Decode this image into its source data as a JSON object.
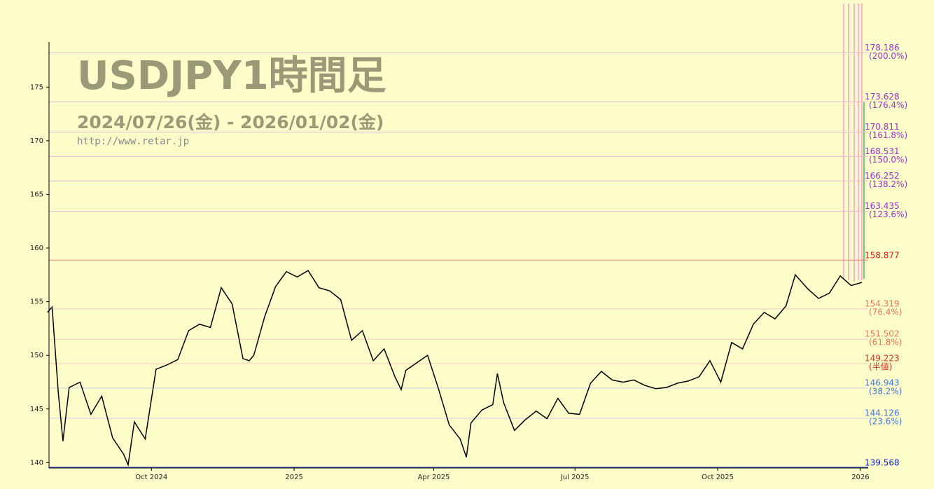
{
  "chart_data": {
    "type": "line",
    "title": "USDJPY1時間足",
    "subtitle": "2024/07/26(金) - 2026/01/02(金)",
    "source": "http://www.retar.jp",
    "xlim": [
      "2024-07-27",
      "2026-01-06"
    ],
    "ylim": [
      139.5,
      179.2
    ],
    "yticks": [
      140,
      145,
      150,
      155,
      160,
      165,
      170,
      175
    ],
    "xticks": [
      {
        "value": "2024-10-01",
        "label": "Oct 2024"
      },
      {
        "value": "2025-01-01",
        "label": "2025"
      },
      {
        "value": "2025-04-01",
        "label": "Apr 2025"
      },
      {
        "value": "2025-07-01",
        "label": "Jul 2025"
      },
      {
        "value": "2025-10-01",
        "label": "Oct 2025"
      },
      {
        "value": "2026-01-01",
        "label": "2026"
      }
    ],
    "x": [
      "2024-07-26",
      "2024-07-29",
      "2024-08-02",
      "2024-08-05",
      "2024-08-09",
      "2024-08-16",
      "2024-08-23",
      "2024-08-30",
      "2024-09-06",
      "2024-09-13",
      "2024-09-16",
      "2024-09-20",
      "2024-09-27",
      "2024-10-04",
      "2024-10-11",
      "2024-10-18",
      "2024-10-25",
      "2024-11-01",
      "2024-11-08",
      "2024-11-15",
      "2024-11-22",
      "2024-11-29",
      "2024-12-03",
      "2024-12-06",
      "2024-12-13",
      "2024-12-20",
      "2024-12-27",
      "2025-01-03",
      "2025-01-10",
      "2025-01-17",
      "2025-01-24",
      "2025-01-31",
      "2025-02-07",
      "2025-02-14",
      "2025-02-21",
      "2025-02-28",
      "2025-03-07",
      "2025-03-11",
      "2025-03-14",
      "2025-03-21",
      "2025-03-28",
      "2025-04-04",
      "2025-04-11",
      "2025-04-18",
      "2025-04-22",
      "2025-04-25",
      "2025-05-02",
      "2025-05-09",
      "2025-05-12",
      "2025-05-16",
      "2025-05-23",
      "2025-05-30",
      "2025-06-06",
      "2025-06-13",
      "2025-06-20",
      "2025-06-27",
      "2025-07-04",
      "2025-07-11",
      "2025-07-18",
      "2025-07-25",
      "2025-08-01",
      "2025-08-08",
      "2025-08-15",
      "2025-08-22",
      "2025-08-29",
      "2025-09-05",
      "2025-09-12",
      "2025-09-19",
      "2025-09-26",
      "2025-10-03",
      "2025-10-10",
      "2025-10-17",
      "2025-10-24",
      "2025-10-31",
      "2025-11-07",
      "2025-11-14",
      "2025-11-20",
      "2025-11-28",
      "2025-12-05",
      "2025-12-12",
      "2025-12-19",
      "2025-12-26",
      "2026-01-02"
    ],
    "series": [
      {
        "name": "USDJPY",
        "color": "#000000",
        "values": [
          154,
          154.5,
          146.5,
          142,
          147,
          147.5,
          144.5,
          146.2,
          142.3,
          140.8,
          139.8,
          143.8,
          142.2,
          148.7,
          149.1,
          149.6,
          152.3,
          152.9,
          152.6,
          156.3,
          154.8,
          149.7,
          149.5,
          150,
          153.6,
          156.4,
          157.8,
          157.3,
          157.9,
          156.3,
          156,
          155.2,
          151.4,
          152.3,
          149.5,
          150.6,
          148,
          146.8,
          148.6,
          149.3,
          150,
          146.9,
          143.5,
          142.2,
          140.5,
          143.7,
          144.9,
          145.4,
          148.3,
          145.6,
          143,
          144,
          144.8,
          144.1,
          146,
          144.6,
          144.5,
          147.4,
          148.5,
          147.7,
          147.5,
          147.7,
          147.2,
          146.9,
          147,
          147.4,
          147.6,
          148,
          149.5,
          147.5,
          151.2,
          150.6,
          152.9,
          154,
          153.4,
          154.6,
          157.5,
          156.2,
          155.3,
          155.8,
          157.4,
          156.5,
          156.8
        ]
      }
    ],
    "levels": [
      {
        "value": 178.186,
        "note": "(200.0%)",
        "color": "#9933cc",
        "line": "#e8b8d8"
      },
      {
        "value": 173.628,
        "note": "(176.4%)",
        "color": "#9933cc",
        "line": "#e8b8d8"
      },
      {
        "value": 170.811,
        "note": "(161.8%)",
        "color": "#9933cc",
        "line": "#e8b8d8"
      },
      {
        "value": 168.531,
        "note": "(150.0%)",
        "color": "#9933cc",
        "line": "#e8b8d8"
      },
      {
        "value": 166.252,
        "note": "(138.2%)",
        "color": "#9933cc",
        "line": "#e8b8d8"
      },
      {
        "value": 163.435,
        "note": "(123.6%)",
        "color": "#9933cc",
        "line": "#e8b8d8"
      },
      {
        "value": 158.877,
        "color": "#dd2222",
        "line": "#f08080"
      },
      {
        "value": 154.319,
        "note": "(76.4%)",
        "color": "#ee7755",
        "line": "#f0c8c0"
      },
      {
        "value": 151.502,
        "note": "(61.8%)",
        "color": "#ee7755",
        "line": "#f0c8c0"
      },
      {
        "value": 149.223,
        "note": "(半値)",
        "color": "#cc3322",
        "line": "#f0c8c0"
      },
      {
        "value": 146.943,
        "note": "(38.2%)",
        "color": "#4477dd",
        "line": "#d0d0f0"
      },
      {
        "value": 144.126,
        "note": "(23.6%)",
        "color": "#4477dd",
        "line": "#d0d0f0"
      },
      {
        "value": 139.568,
        "color": "#1122dd",
        "line": "#3344cc"
      }
    ]
  }
}
